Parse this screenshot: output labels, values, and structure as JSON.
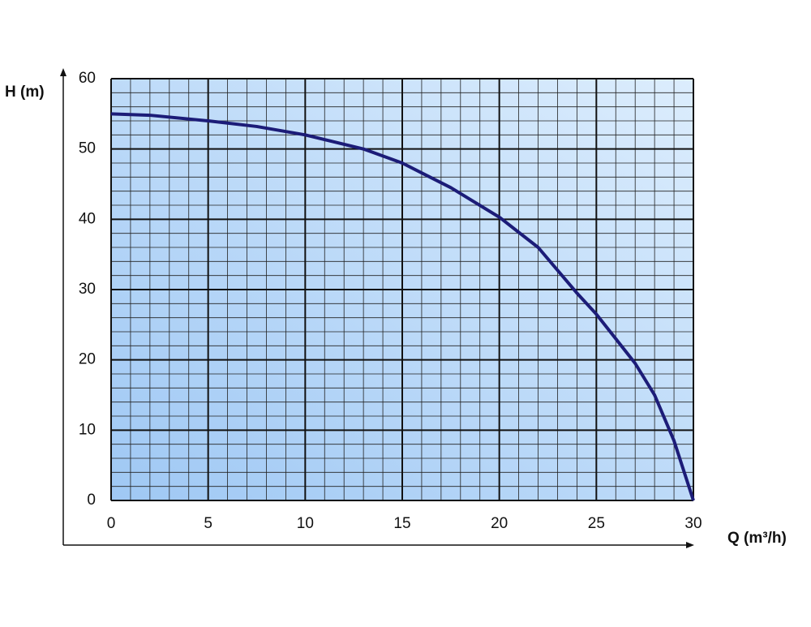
{
  "chart_data": {
    "type": "line",
    "x_label": "Q (m³/h)",
    "y_label": "H (m)",
    "x": [
      0,
      2,
      5,
      7.5,
      10,
      13,
      15,
      17.5,
      20,
      22,
      24,
      25,
      26,
      27,
      28,
      29,
      30
    ],
    "values": [
      55,
      54.8,
      54,
      53.2,
      52,
      50,
      48,
      44.5,
      40.3,
      36,
      29.5,
      26.5,
      23,
      19.5,
      15,
      8.5,
      0
    ],
    "color": "#1c1c78",
    "xlim": [
      0,
      30
    ],
    "xticks": [
      0,
      5,
      10,
      15,
      20,
      25,
      30
    ],
    "ylim": [
      0,
      60
    ],
    "yticks": [
      0,
      10,
      20,
      30,
      40,
      50,
      60
    ],
    "grid": true,
    "minor_grid_divisions": 5
  }
}
